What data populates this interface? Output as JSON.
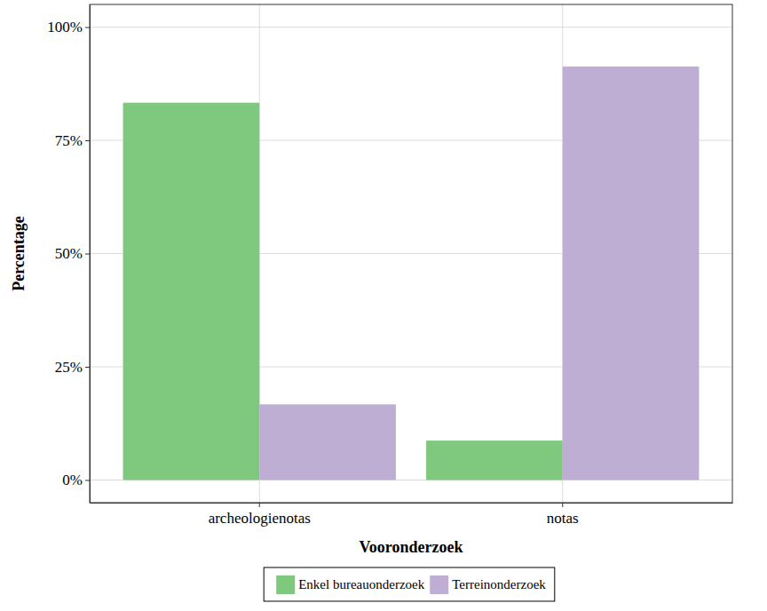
{
  "chart_data": {
    "type": "bar",
    "x_label": "Vooronderzoek",
    "y_label": "Percentage",
    "categories": [
      "archeologienotas",
      "notas"
    ],
    "series": [
      {
        "name": "Enkel bureauonderzoek",
        "color": "#7fc97f",
        "values": [
          83.3,
          8.7
        ]
      },
      {
        "name": "Terreinonderzoek",
        "color": "#beaed4",
        "values": [
          16.7,
          91.3
        ]
      }
    ],
    "ylim": [
      -5,
      105
    ],
    "yticks": [
      {
        "value": 0,
        "label": "0%"
      },
      {
        "value": 25,
        "label": "25%"
      },
      {
        "value": 50,
        "label": "50%"
      },
      {
        "value": 75,
        "label": "75%"
      },
      {
        "value": 100,
        "label": "100%"
      }
    ],
    "grid": true,
    "legend": "bottom"
  }
}
